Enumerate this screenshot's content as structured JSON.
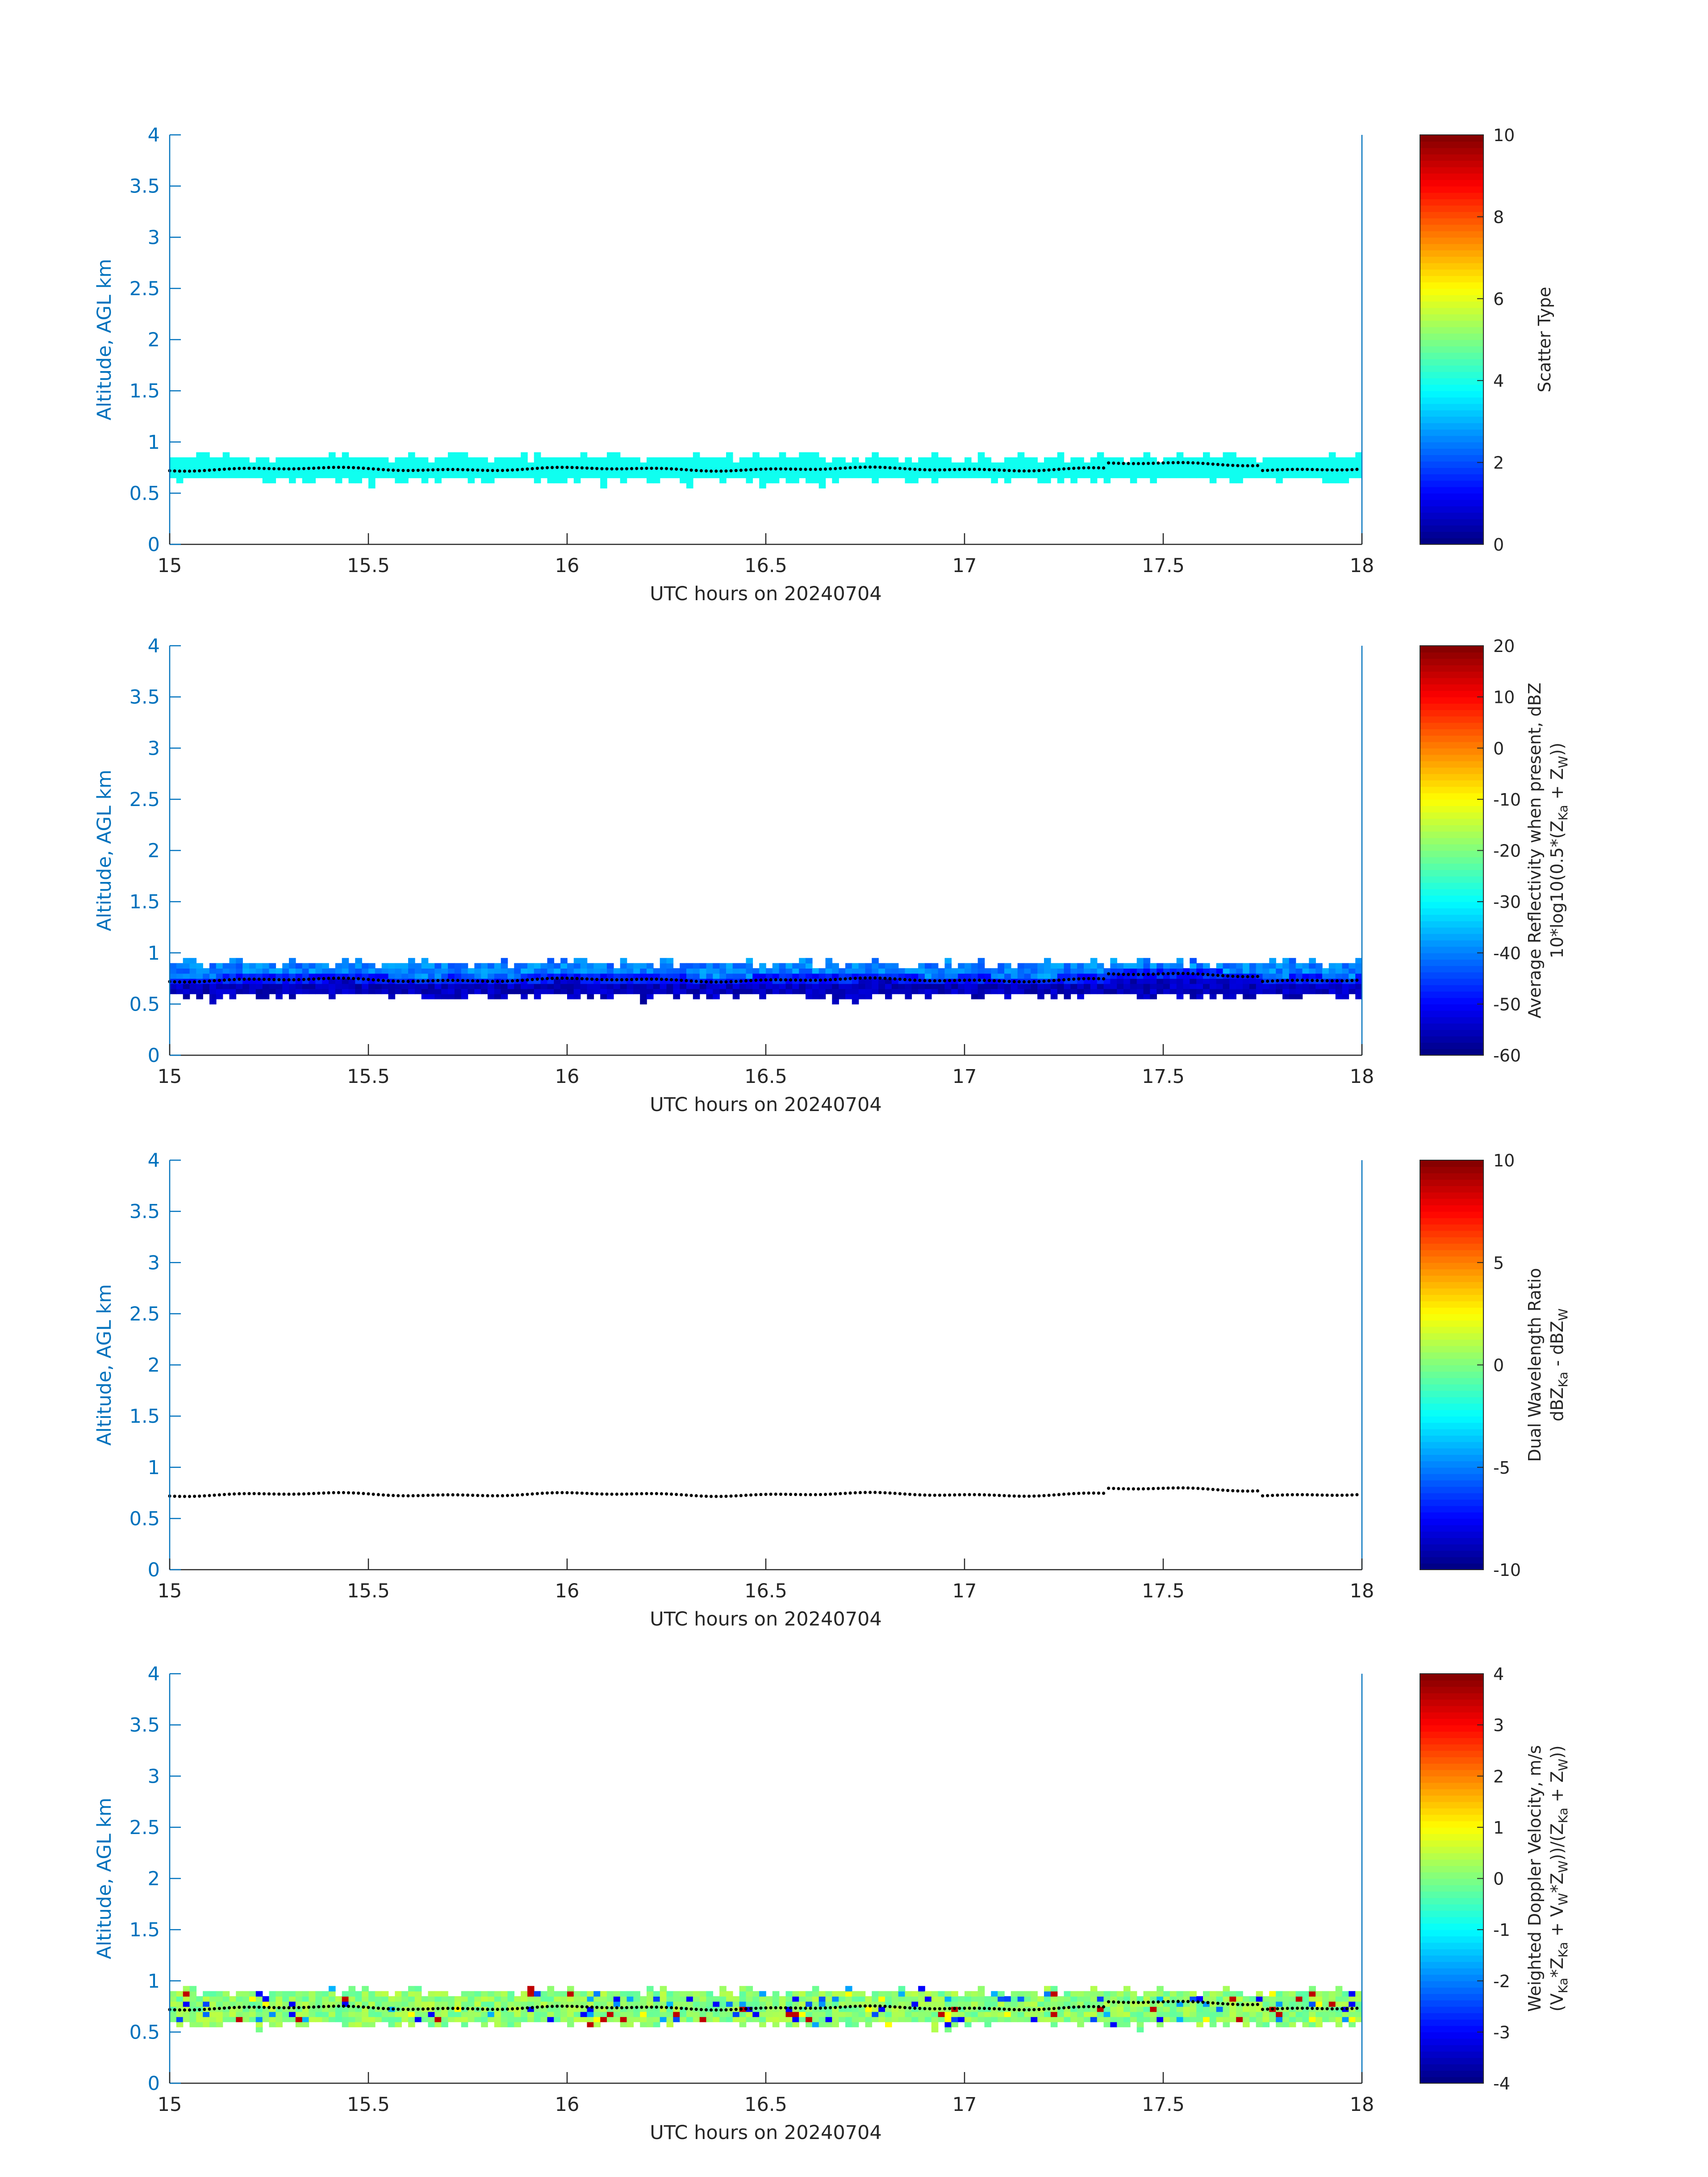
{
  "figure": {
    "background": "#ffffff",
    "axis_color": "#0072bd",
    "text_color": "#262626"
  },
  "chart_data": [
    {
      "type": "heatmap",
      "xlabel": "UTC hours on 20240704",
      "ylabel": "Altitude, AGL km",
      "xlim": [
        15,
        18
      ],
      "ylim": [
        0,
        4
      ],
      "xticks": [
        "15",
        "15.5",
        "16",
        "16.5",
        "17",
        "17.5",
        "18"
      ],
      "yticks": [
        "0",
        "0.5",
        "1",
        "1.5",
        "2",
        "2.5",
        "3",
        "3.5",
        "4"
      ],
      "colorbar": {
        "label_lines": [
          "Scatter Type"
        ],
        "limits": [
          0,
          10
        ],
        "ticks": [
          "0",
          "2",
          "4",
          "6",
          "8",
          "10"
        ],
        "colormap": "jet"
      },
      "field": "scatter_type",
      "layer": {
        "bottom_km": 0.6,
        "top_km": 0.85,
        "value": 3.9
      },
      "dotted_line_km": "~0.72-0.80, black dotted line across all x"
    },
    {
      "type": "heatmap",
      "xlabel": "UTC hours on 20240704",
      "ylabel": "Altitude, AGL km",
      "xlim": [
        15,
        18
      ],
      "ylim": [
        0,
        4
      ],
      "xticks": [
        "15",
        "15.5",
        "16",
        "16.5",
        "17",
        "17.5",
        "18"
      ],
      "yticks": [
        "0",
        "0.5",
        "1",
        "1.5",
        "2",
        "2.5",
        "3",
        "3.5",
        "4"
      ],
      "colorbar": {
        "label_lines": [
          "Average Reflectivity when present, dBZ",
          "10*log10(0.5*(Z",
          "Ka",
          " + Z",
          "W",
          "))"
        ],
        "limits": [
          -60,
          20
        ],
        "ticks": [
          "-60",
          "-50",
          "-40",
          "-30",
          "-20",
          "-10",
          "0",
          "10",
          "20"
        ],
        "colormap": "jet"
      },
      "field": "reflectivity",
      "layer": {
        "bottom_km": 0.55,
        "top_km": 0.88,
        "top_value": -40,
        "mid_value": -48,
        "bottom_value": -55
      }
    },
    {
      "type": "heatmap",
      "xlabel": "UTC hours on 20240704",
      "ylabel": "Altitude, AGL km",
      "xlim": [
        15,
        18
      ],
      "ylim": [
        0,
        4
      ],
      "xticks": [
        "15",
        "15.5",
        "16",
        "16.5",
        "17",
        "17.5",
        "18"
      ],
      "yticks": [
        "0",
        "0.5",
        "1",
        "1.5",
        "2",
        "2.5",
        "3",
        "3.5",
        "4"
      ],
      "colorbar": {
        "label_lines": [
          "Dual Wavelength Ratio",
          "dBZ",
          "Ka",
          " - dBZ",
          "W"
        ],
        "limits": [
          -10,
          10
        ],
        "ticks": [
          "-10",
          "-5",
          "0",
          "5",
          "10"
        ],
        "colormap": "jet"
      },
      "field": "dual_wavelength_ratio",
      "layer": null
    },
    {
      "type": "heatmap",
      "xlabel": "UTC hours on 20240704",
      "ylabel": "Altitude, AGL km",
      "xlim": [
        15,
        18
      ],
      "ylim": [
        0,
        4
      ],
      "xticks": [
        "15",
        "15.5",
        "16",
        "16.5",
        "17",
        "17.5",
        "18"
      ],
      "yticks": [
        "0",
        "0.5",
        "1",
        "1.5",
        "2",
        "2.5",
        "3",
        "3.5",
        "4"
      ],
      "colorbar": {
        "label_lines": [
          "Weighted Doppler Velocity, m/s",
          "(V",
          "Ka",
          "*Z",
          "Ka",
          " + V",
          "W",
          "*Z",
          "W",
          "))/(Z",
          "Ka",
          " + Z",
          "W",
          "))"
        ],
        "limits": [
          -4,
          4
        ],
        "ticks": [
          "-4",
          "-3",
          "-2",
          "-1",
          "0",
          "1",
          "2",
          "3",
          "4"
        ],
        "colormap": "jet"
      },
      "field": "doppler_velocity",
      "layer": {
        "bottom_km": 0.55,
        "top_km": 0.88,
        "value": 0.1
      }
    }
  ]
}
